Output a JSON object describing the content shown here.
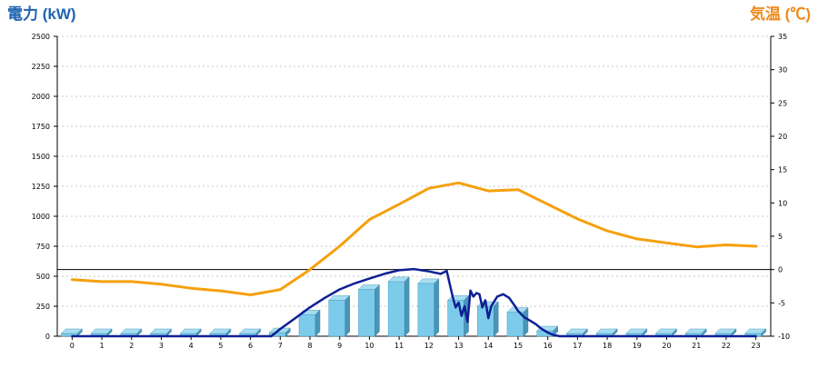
{
  "chart_data": {
    "type": "bar+line",
    "y_left_label": "電力 (kW)",
    "y_right_label": "気温 (℃)",
    "x_ticks": [
      "0",
      "1",
      "2",
      "3",
      "4",
      "5",
      "6",
      "7",
      "8",
      "9",
      "10",
      "11",
      "12",
      "13",
      "14",
      "15",
      "16",
      "17",
      "18",
      "19",
      "20",
      "21",
      "22",
      "23"
    ],
    "y_left_ticks": [
      "0",
      "250",
      "500",
      "750",
      "1000",
      "1250",
      "1500",
      "1750",
      "2000",
      "2250",
      "2500"
    ],
    "y_right_ticks": [
      "-10",
      "-5",
      "0",
      "5",
      "10",
      "15",
      "20",
      "25",
      "30",
      "35"
    ],
    "y_left_range": [
      0,
      2500
    ],
    "y_right_range": [
      -10,
      35
    ],
    "grid": "horizontal-dashed",
    "bars": {
      "x": [
        0,
        1,
        2,
        3,
        4,
        5,
        6,
        7,
        8,
        9,
        10,
        11,
        12,
        13,
        14,
        15,
        16,
        17,
        18,
        19,
        20,
        21,
        22,
        23
      ],
      "values": [
        0,
        0,
        0,
        0,
        0,
        0,
        0,
        30,
        180,
        300,
        390,
        455,
        440,
        300,
        250,
        200,
        45,
        0,
        0,
        0,
        0,
        0,
        0,
        0
      ],
      "color": "#7ccbea"
    },
    "power_line": {
      "color": "#0d1f93",
      "points": [
        [
          0,
          0
        ],
        [
          1,
          0
        ],
        [
          2,
          0
        ],
        [
          3,
          0
        ],
        [
          4,
          0
        ],
        [
          5,
          0
        ],
        [
          6,
          0
        ],
        [
          6.7,
          0
        ],
        [
          7,
          60
        ],
        [
          7.5,
          150
        ],
        [
          8,
          240
        ],
        [
          8.5,
          320
        ],
        [
          9,
          390
        ],
        [
          9.5,
          440
        ],
        [
          10,
          480
        ],
        [
          10.5,
          520
        ],
        [
          11,
          550
        ],
        [
          11.5,
          560
        ],
        [
          12,
          540
        ],
        [
          12.4,
          520
        ],
        [
          12.6,
          545
        ],
        [
          12.8,
          330
        ],
        [
          12.9,
          240
        ],
        [
          13,
          280
        ],
        [
          13.1,
          170
        ],
        [
          13.2,
          250
        ],
        [
          13.3,
          120
        ],
        [
          13.4,
          380
        ],
        [
          13.5,
          330
        ],
        [
          13.6,
          360
        ],
        [
          13.7,
          350
        ],
        [
          13.8,
          240
        ],
        [
          13.9,
          300
        ],
        [
          14,
          150
        ],
        [
          14.1,
          250
        ],
        [
          14.2,
          290
        ],
        [
          14.3,
          330
        ],
        [
          14.5,
          350
        ],
        [
          14.7,
          320
        ],
        [
          14.9,
          250
        ],
        [
          15,
          210
        ],
        [
          15.2,
          160
        ],
        [
          15.4,
          130
        ],
        [
          15.6,
          100
        ],
        [
          15.8,
          60
        ],
        [
          16,
          30
        ],
        [
          16.2,
          10
        ],
        [
          16.4,
          0
        ],
        [
          17,
          0
        ],
        [
          18,
          0
        ],
        [
          19,
          0
        ],
        [
          20,
          0
        ],
        [
          21,
          0
        ],
        [
          22,
          0
        ],
        [
          23,
          0
        ]
      ]
    },
    "temperature_line": {
      "color": "#f5a00c",
      "x": [
        0,
        1,
        2,
        3,
        4,
        5,
        6,
        7,
        8,
        9,
        10,
        11,
        12,
        13,
        14,
        15,
        16,
        17,
        18,
        19,
        20,
        21,
        22,
        23
      ],
      "values": [
        -1.5,
        -1.8,
        -1.8,
        -2.2,
        -2.8,
        -3.2,
        -3.8,
        -3.0,
        0.0,
        3.5,
        7.5,
        9.8,
        12.2,
        13.0,
        11.8,
        12.0,
        9.8,
        7.6,
        5.8,
        4.6,
        4.0,
        3.4,
        3.7,
        3.5
      ]
    },
    "reference_line_temp": 0
  }
}
